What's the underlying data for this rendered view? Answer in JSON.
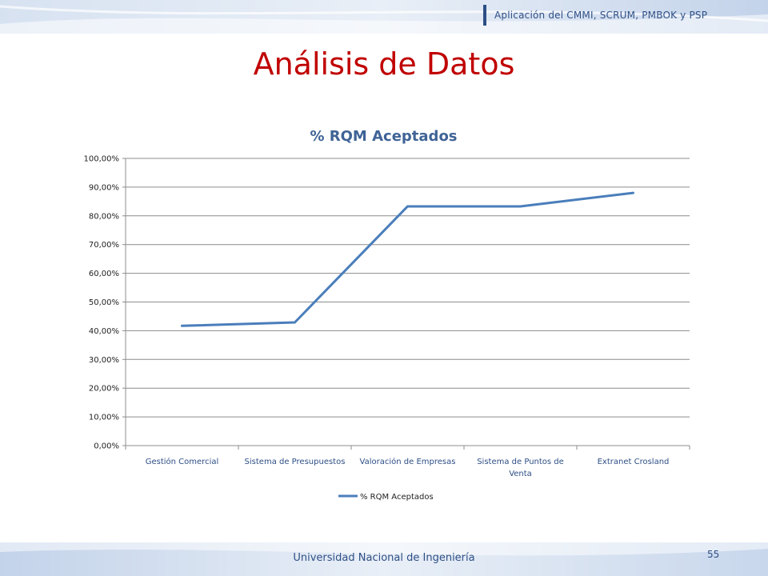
{
  "header": {
    "subtitle": "Aplicación del CMMI, SCRUM, PMBOK y PSP"
  },
  "slide": {
    "title": "Análisis de Datos"
  },
  "chart_data": {
    "type": "line",
    "title": "% RQM Aceptados",
    "categories": [
      [
        "Gestión Comercial"
      ],
      [
        "Sistema de Presupuestos"
      ],
      [
        "Valoración de Empresas"
      ],
      [
        "Sistema de Puntos de",
        "Venta"
      ],
      [
        "Extranet Crosland"
      ]
    ],
    "series": [
      {
        "name": "% RQM Aceptados",
        "values": [
          41.7,
          42.9,
          83.3,
          83.3,
          88.0
        ]
      }
    ],
    "yticks": [
      "0,00%",
      "10,00%",
      "20,00%",
      "30,00%",
      "40,00%",
      "50,00%",
      "60,00%",
      "70,00%",
      "80,00%",
      "90,00%",
      "100,00%"
    ],
    "ylim": [
      0,
      100
    ],
    "grid": true,
    "legend": "bottom",
    "line_color": "#4a7ebb",
    "title_color": "#3f6396"
  },
  "footer": {
    "university": "Universidad Nacional de Ingeniería",
    "page": "55"
  },
  "colors": {
    "title": "#c00000",
    "accent": "#2e4f86"
  }
}
